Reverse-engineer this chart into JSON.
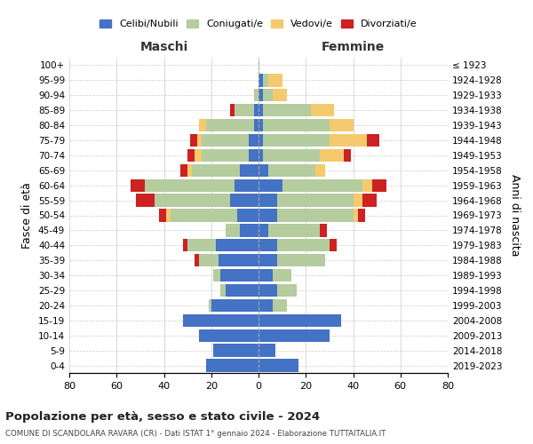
{
  "age_groups": [
    "0-4",
    "5-9",
    "10-14",
    "15-19",
    "20-24",
    "25-29",
    "30-34",
    "35-39",
    "40-44",
    "45-49",
    "50-54",
    "55-59",
    "60-64",
    "65-69",
    "70-74",
    "75-79",
    "80-84",
    "85-89",
    "90-94",
    "95-99",
    "100+"
  ],
  "birth_years": [
    "2019-2023",
    "2014-2018",
    "2009-2013",
    "2004-2008",
    "1999-2003",
    "1994-1998",
    "1989-1993",
    "1984-1988",
    "1979-1983",
    "1974-1978",
    "1969-1973",
    "1964-1968",
    "1959-1963",
    "1954-1958",
    "1949-1953",
    "1944-1948",
    "1939-1943",
    "1934-1938",
    "1929-1933",
    "1924-1928",
    "≤ 1923"
  ],
  "colors": {
    "celibi": "#4472c4",
    "coniugati": "#b5cc9e",
    "vedovi": "#f5c96e",
    "divorziati": "#cc2222"
  },
  "maschi": {
    "celibi": [
      22,
      19,
      25,
      32,
      20,
      14,
      16,
      17,
      18,
      8,
      9,
      12,
      10,
      8,
      4,
      4,
      2,
      2,
      0,
      0,
      0
    ],
    "coniugati": [
      0,
      0,
      0,
      0,
      1,
      2,
      3,
      8,
      12,
      6,
      28,
      32,
      38,
      20,
      20,
      20,
      20,
      8,
      2,
      0,
      0
    ],
    "vedovi": [
      0,
      0,
      0,
      0,
      0,
      0,
      0,
      0,
      0,
      0,
      2,
      0,
      0,
      2,
      3,
      2,
      3,
      0,
      0,
      0,
      0
    ],
    "divorziati": [
      0,
      0,
      0,
      0,
      0,
      0,
      0,
      2,
      2,
      0,
      3,
      8,
      6,
      3,
      3,
      3,
      0,
      2,
      0,
      0,
      0
    ]
  },
  "femmine": {
    "celibi": [
      17,
      7,
      30,
      35,
      6,
      8,
      6,
      8,
      8,
      4,
      8,
      8,
      10,
      4,
      2,
      2,
      2,
      2,
      2,
      2,
      0
    ],
    "coniugati": [
      0,
      0,
      0,
      0,
      6,
      8,
      8,
      20,
      22,
      22,
      32,
      32,
      34,
      20,
      24,
      28,
      28,
      20,
      4,
      2,
      0
    ],
    "vedovi": [
      0,
      0,
      0,
      0,
      0,
      0,
      0,
      0,
      0,
      0,
      2,
      4,
      4,
      4,
      10,
      16,
      10,
      10,
      6,
      6,
      0
    ],
    "divorziati": [
      0,
      0,
      0,
      0,
      0,
      0,
      0,
      0,
      3,
      3,
      3,
      6,
      6,
      0,
      3,
      5,
      0,
      0,
      0,
      0,
      0
    ]
  },
  "title1": "Popolazione per età, sesso e stato civile - 2024",
  "title2": "COMUNE DI SCANDOLARA RAVARA (CR) - Dati ISTAT 1° gennaio 2024 - Elaborazione TUTTAITALIA.IT",
  "xlabel_left": "Maschi",
  "xlabel_right": "Femmine",
  "ylabel_left": "Fasce di età",
  "ylabel_right": "Anni di nascita",
  "xlim": 80,
  "legend_labels": [
    "Celibi/Nubili",
    "Coniugati/e",
    "Vedovi/e",
    "Divorziati/e"
  ],
  "background_color": "#ffffff",
  "grid_color": "#cccccc"
}
